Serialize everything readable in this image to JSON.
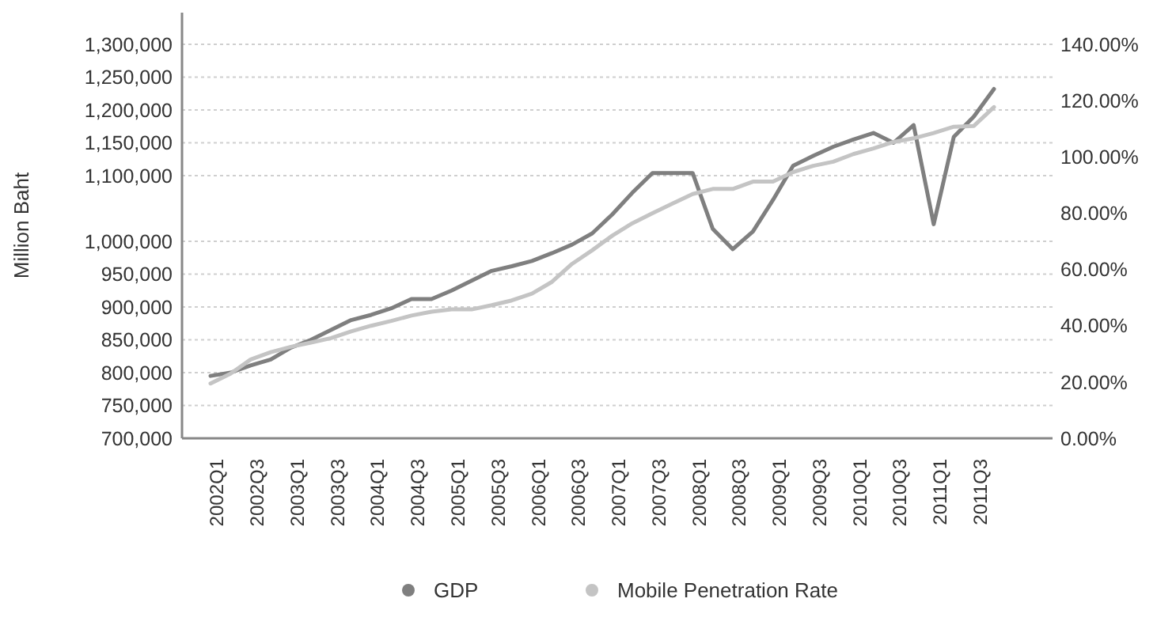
{
  "chart_data": {
    "type": "line",
    "ylabel": "Million Baht",
    "categories": [
      "2002Q1",
      null,
      "2002Q3",
      null,
      "2003Q1",
      null,
      "2003Q3",
      null,
      "2004Q1",
      null,
      "2004Q3",
      null,
      "2005Q1",
      null,
      "2005Q3",
      null,
      "2006Q1",
      null,
      "2006Q3",
      null,
      "2007Q1",
      null,
      "2007Q3",
      null,
      "2008Q1",
      null,
      "2008Q3",
      null,
      "2009Q1",
      null,
      "2009Q3",
      null,
      "2010Q1",
      null,
      "2010Q3",
      null,
      "2011Q1",
      null,
      "2011Q3",
      null
    ],
    "series": [
      {
        "name": "GDP",
        "color": "#7f7f7f",
        "values": [
          795000,
          800000,
          811000,
          820000,
          838000,
          850000,
          865000,
          880000,
          888000,
          898000,
          912000,
          912000,
          925000,
          940000,
          955000,
          962000,
          970000,
          982000,
          995000,
          1012000,
          1041000,
          1074000,
          1104000,
          1104000,
          1104000,
          1019000,
          988000,
          1015000,
          1063000,
          1115000,
          1130000,
          1144000,
          1155000,
          1165000,
          1150000,
          1177000,
          1026000,
          1159000,
          1190000,
          1232000
        ]
      },
      {
        "name": "Mobile Penetration Rate",
        "color": "#c4c4c4",
        "axis": "y2",
        "values": [
          19.5,
          23,
          28,
          30.6,
          32.5,
          34,
          35.6,
          38,
          40,
          41.7,
          43.6,
          45,
          45.8,
          45.8,
          47.3,
          49,
          51.4,
          55.6,
          62,
          66.8,
          72,
          76.4,
          80,
          83.4,
          86.8,
          88.6,
          88.6,
          91.2,
          91.2,
          94.6,
          96.8,
          98.3,
          101,
          103,
          105.3,
          106.6,
          108.5,
          110.7,
          111,
          117.7
        ]
      }
    ],
    "ylim": [
      700000,
      1300000
    ],
    "yticks": [
      {
        "value": 700000,
        "label": "700,000"
      },
      {
        "value": 750000,
        "label": "750,000"
      },
      {
        "value": 800000,
        "label": "800,000"
      },
      {
        "value": 850000,
        "label": "850,000"
      },
      {
        "value": 900000,
        "label": "900,000"
      },
      {
        "value": 950000,
        "label": "950,000"
      },
      {
        "value": 1000000,
        "label": "1,000,000"
      },
      {
        "value": 1100000,
        "label": "1,100,000"
      },
      {
        "value": 1150000,
        "label": "1,150,000"
      },
      {
        "value": 1200000,
        "label": "1,200,000"
      },
      {
        "value": 1250000,
        "label": "1,250,000"
      },
      {
        "value": 1300000,
        "label": "1,300,000"
      }
    ],
    "y2lim": [
      0,
      140
    ],
    "y2ticks": [
      {
        "value": 0,
        "label": "0.00%"
      },
      {
        "value": 20,
        "label": "20.00%"
      },
      {
        "value": 40,
        "label": "40.00%"
      },
      {
        "value": 60,
        "label": "60.00%"
      },
      {
        "value": 80,
        "label": "80.00%"
      },
      {
        "value": 100,
        "label": "100.00%"
      },
      {
        "value": 120,
        "label": "120.00%"
      },
      {
        "value": 140,
        "label": "140.00%"
      }
    ],
    "grid": "y",
    "legend": "bottom",
    "marker": "none",
    "line_style": "solid"
  }
}
